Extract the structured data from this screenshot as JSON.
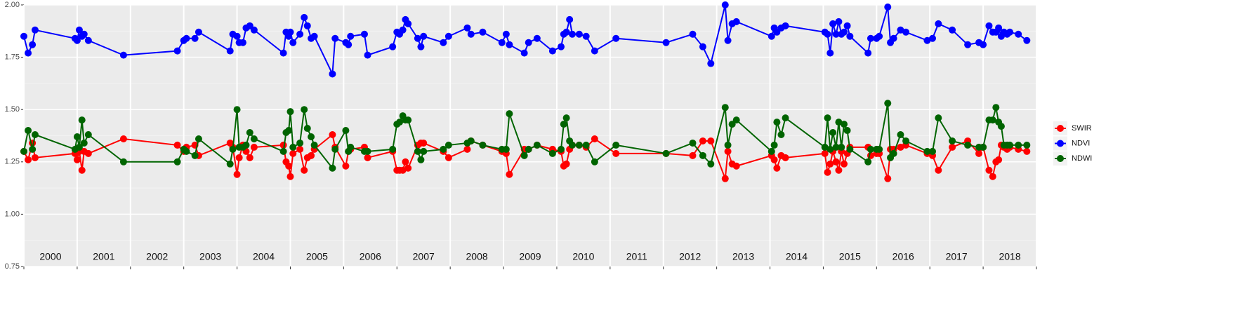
{
  "chart_data": {
    "type": "line",
    "categories": [
      "2000",
      "2001",
      "2002",
      "2003",
      "2004",
      "2005",
      "2006",
      "2007",
      "2008",
      "2009",
      "2010",
      "2011",
      "2012",
      "2013",
      "2014",
      "2015",
      "2016",
      "2017",
      "2018"
    ],
    "xlim": [
      2000,
      2019
    ],
    "xticks": [
      2000,
      2001,
      2002,
      2003,
      2004,
      2005,
      2006,
      2007,
      2008,
      2009,
      2010,
      2011,
      2012,
      2013,
      2014,
      2015,
      2016,
      2017,
      2018,
      2019
    ],
    "ylim": [
      0.75,
      2.0
    ],
    "yticks": [
      0.75,
      {
        "value": 1.0,
        "label": "1.00"
      },
      1.25,
      {
        "value": 1.5,
        "label": "1.50"
      },
      1.75,
      {
        "value": 2.0,
        "label": "2.00"
      }
    ],
    "grid": true,
    "legend": "right",
    "x": [
      2000.0,
      2000.08,
      2000.16,
      2000.21,
      2000.96,
      2001.0,
      2001.04,
      2001.09,
      2001.13,
      2001.21,
      2001.87,
      2002.88,
      2003.0,
      2003.05,
      2003.21,
      2003.28,
      2003.87,
      2003.92,
      2004.0,
      2004.04,
      2004.11,
      2004.17,
      2004.24,
      2004.32,
      2004.87,
      2004.92,
      2004.97,
      2005.0,
      2005.05,
      2005.18,
      2005.26,
      2005.32,
      2005.39,
      2005.45,
      2005.79,
      2005.84,
      2006.04,
      2006.09,
      2006.13,
      2006.39,
      2006.45,
      2006.92,
      2007.0,
      2007.05,
      2007.11,
      2007.16,
      2007.21,
      2007.39,
      2007.45,
      2007.5,
      2007.87,
      2007.97,
      2008.32,
      2008.39,
      2008.61,
      2008.97,
      2009.05,
      2009.11,
      2009.39,
      2009.47,
      2009.63,
      2009.92,
      2010.08,
      2010.13,
      2010.18,
      2010.24,
      2010.29,
      2010.42,
      2010.55,
      2010.71,
      2011.11,
      2012.05,
      2012.55,
      2012.74,
      2012.89,
      2013.16,
      2013.21,
      2013.29,
      2013.37,
      2014.03,
      2014.08,
      2014.13,
      2014.21,
      2014.29,
      2015.03,
      2015.08,
      2015.13,
      2015.18,
      2015.24,
      2015.29,
      2015.34,
      2015.39,
      2015.45,
      2015.5,
      2015.84,
      2015.89,
      2016.0,
      2016.05,
      2016.21,
      2016.26,
      2016.32,
      2016.45,
      2016.55,
      2016.95,
      2017.05,
      2017.16,
      2017.42,
      2017.71,
      2017.92,
      2018.0,
      2018.11,
      2018.18,
      2018.24,
      2018.29,
      2018.34,
      2018.39,
      2018.45,
      2018.5,
      2018.66,
      2018.82
    ],
    "series": [
      {
        "name": "SWIR",
        "color": "#ff0000",
        "values": [
          1.3,
          1.26,
          1.34,
          1.27,
          1.29,
          1.26,
          1.3,
          1.21,
          1.3,
          1.29,
          1.36,
          1.33,
          1.3,
          1.32,
          1.33,
          1.28,
          1.34,
          1.32,
          1.19,
          1.27,
          1.33,
          1.3,
          1.27,
          1.32,
          1.33,
          1.25,
          1.23,
          1.18,
          1.29,
          1.31,
          1.21,
          1.27,
          1.28,
          1.31,
          1.38,
          1.32,
          1.23,
          1.3,
          1.31,
          1.32,
          1.27,
          1.3,
          1.21,
          1.21,
          1.21,
          1.25,
          1.22,
          1.33,
          1.34,
          1.34,
          1.3,
          1.27,
          1.31,
          1.35,
          1.33,
          1.3,
          1.29,
          1.19,
          1.31,
          1.31,
          1.33,
          1.31,
          1.3,
          1.23,
          1.24,
          1.31,
          1.33,
          1.33,
          1.32,
          1.36,
          1.29,
          1.29,
          1.28,
          1.35,
          1.35,
          1.17,
          1.3,
          1.24,
          1.23,
          1.28,
          1.26,
          1.22,
          1.28,
          1.27,
          1.29,
          1.2,
          1.24,
          1.3,
          1.25,
          1.21,
          1.3,
          1.24,
          1.29,
          1.32,
          1.32,
          1.28,
          1.29,
          1.29,
          1.17,
          1.31,
          1.31,
          1.32,
          1.33,
          1.29,
          1.28,
          1.21,
          1.32,
          1.35,
          1.29,
          1.32,
          1.21,
          1.18,
          1.25,
          1.26,
          1.33,
          1.32,
          1.31,
          1.32,
          1.31,
          1.3
        ]
      },
      {
        "name": "NDVI",
        "color": "#0000ff",
        "values": [
          1.85,
          1.77,
          1.81,
          1.88,
          1.84,
          1.83,
          1.88,
          1.85,
          1.86,
          1.83,
          1.76,
          1.78,
          1.83,
          1.84,
          1.84,
          1.87,
          1.78,
          1.86,
          1.85,
          1.82,
          1.82,
          1.89,
          1.9,
          1.88,
          1.77,
          1.87,
          1.85,
          1.87,
          1.82,
          1.86,
          1.94,
          1.9,
          1.84,
          1.85,
          1.67,
          1.84,
          1.82,
          1.81,
          1.85,
          1.86,
          1.76,
          1.8,
          1.87,
          1.86,
          1.88,
          1.93,
          1.91,
          1.84,
          1.8,
          1.85,
          1.82,
          1.85,
          1.89,
          1.86,
          1.87,
          1.82,
          1.86,
          1.81,
          1.77,
          1.82,
          1.84,
          1.78,
          1.8,
          1.86,
          1.87,
          1.93,
          1.86,
          1.86,
          1.85,
          1.78,
          1.84,
          1.82,
          1.86,
          1.8,
          1.72,
          2.0,
          1.83,
          1.91,
          1.92,
          1.85,
          1.89,
          1.87,
          1.89,
          1.9,
          1.87,
          1.86,
          1.77,
          1.91,
          1.86,
          1.92,
          1.86,
          1.87,
          1.9,
          1.85,
          1.77,
          1.84,
          1.84,
          1.85,
          1.99,
          1.82,
          1.84,
          1.88,
          1.87,
          1.83,
          1.84,
          1.91,
          1.88,
          1.81,
          1.82,
          1.81,
          1.9,
          1.87,
          1.87,
          1.89,
          1.85,
          1.87,
          1.86,
          1.87,
          1.86,
          1.83
        ]
      },
      {
        "name": "NDWI",
        "color": "#006400",
        "values": [
          1.3,
          1.4,
          1.31,
          1.38,
          1.31,
          1.37,
          1.32,
          1.45,
          1.34,
          1.38,
          1.25,
          1.25,
          1.31,
          1.3,
          1.28,
          1.36,
          1.24,
          1.31,
          1.5,
          1.32,
          1.32,
          1.33,
          1.39,
          1.36,
          1.3,
          1.39,
          1.4,
          1.49,
          1.32,
          1.34,
          1.5,
          1.41,
          1.37,
          1.33,
          1.22,
          1.31,
          1.4,
          1.3,
          1.32,
          1.3,
          1.3,
          1.31,
          1.43,
          1.44,
          1.47,
          1.45,
          1.45,
          1.3,
          1.26,
          1.3,
          1.31,
          1.33,
          1.34,
          1.35,
          1.33,
          1.31,
          1.31,
          1.48,
          1.28,
          1.31,
          1.33,
          1.29,
          1.31,
          1.43,
          1.46,
          1.35,
          1.33,
          1.33,
          1.33,
          1.25,
          1.33,
          1.29,
          1.34,
          1.28,
          1.24,
          1.51,
          1.33,
          1.43,
          1.45,
          1.3,
          1.33,
          1.44,
          1.38,
          1.46,
          1.32,
          1.46,
          1.31,
          1.39,
          1.32,
          1.44,
          1.32,
          1.43,
          1.4,
          1.31,
          1.25,
          1.31,
          1.31,
          1.31,
          1.53,
          1.27,
          1.29,
          1.38,
          1.35,
          1.3,
          1.3,
          1.46,
          1.35,
          1.33,
          1.32,
          1.32,
          1.45,
          1.45,
          1.51,
          1.44,
          1.42,
          1.33,
          1.33,
          1.33,
          1.33,
          1.33
        ]
      }
    ]
  }
}
